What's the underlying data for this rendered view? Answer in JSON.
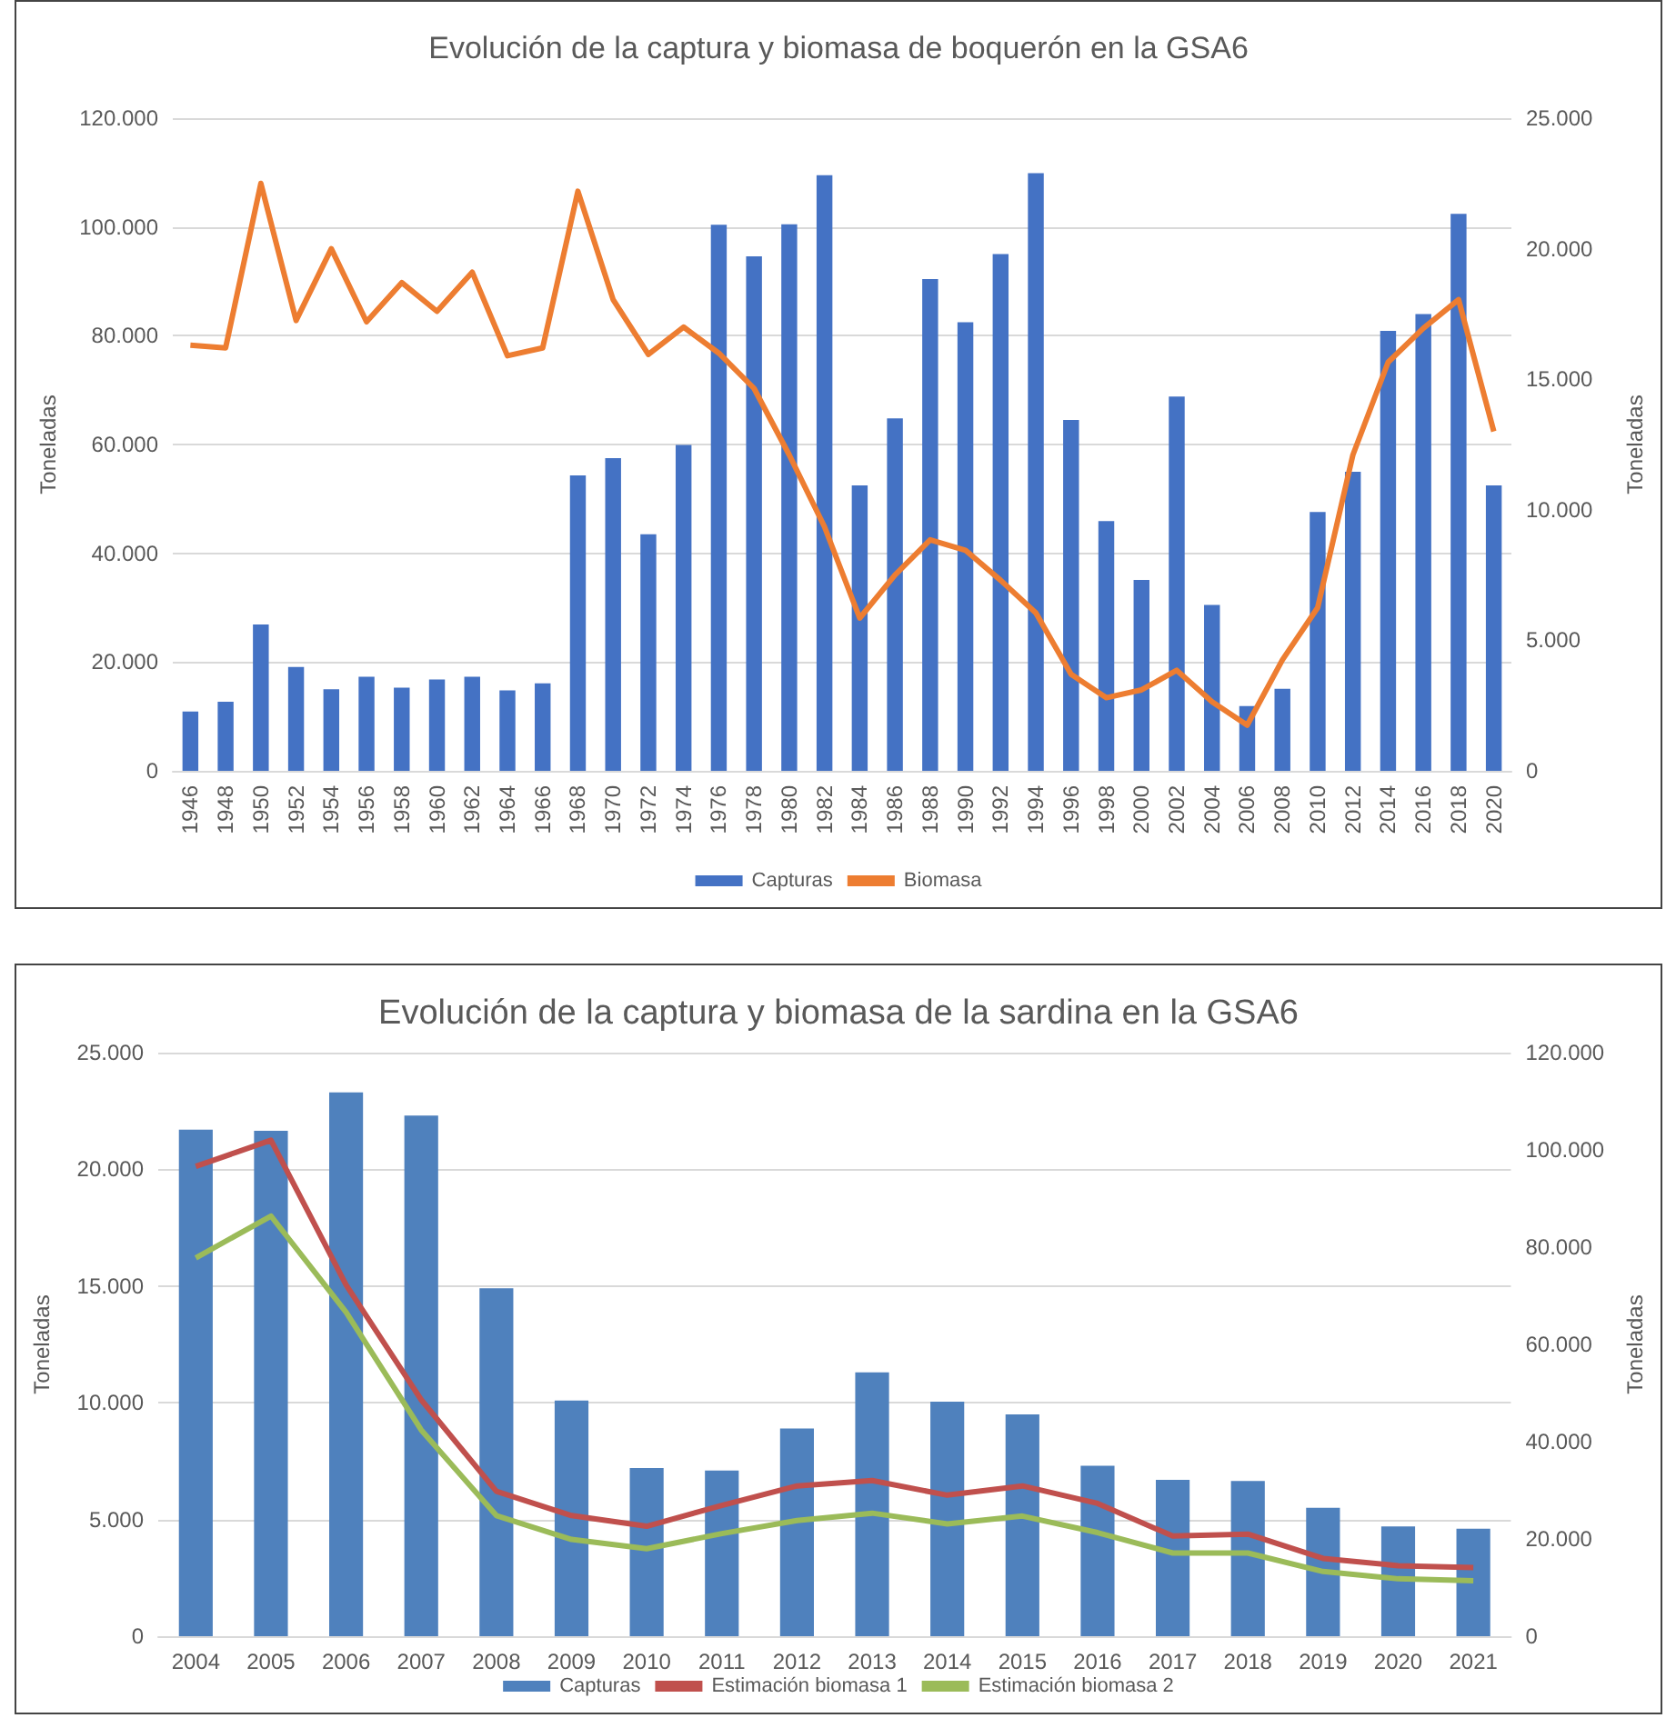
{
  "chart_data": [
    {
      "type": "bar",
      "title": "Evolución de la captura y biomasa de boquerón en la GSA6",
      "ylabel": "Toneladas",
      "y2label": "Toneladas",
      "categories": [
        "1946",
        "1948",
        "1950",
        "1952",
        "1954",
        "1956",
        "1958",
        "1960",
        "1962",
        "1964",
        "1966",
        "1968",
        "1970",
        "1972",
        "1974",
        "1976",
        "1978",
        "1980",
        "1982",
        "1984",
        "1986",
        "1988",
        "1990",
        "1992",
        "1994",
        "1996",
        "1998",
        "2000",
        "2002",
        "2004",
        "2006",
        "2008",
        "2010",
        "2012",
        "2014",
        "2016",
        "2018",
        "2020"
      ],
      "series": [
        {
          "name": "Capturas",
          "color": "#4472c4",
          "values": [
            10900,
            12700,
            26900,
            19100,
            15000,
            17300,
            15300,
            16800,
            17300,
            14800,
            16100,
            54300,
            57500,
            43500,
            59900,
            100400,
            94600,
            100500,
            109500,
            52500,
            64800,
            90400,
            82500,
            95000,
            109900,
            64500,
            45900,
            35100,
            68800,
            30500,
            11900,
            15100,
            47600,
            55000,
            80900,
            84000,
            102400,
            52500
          ]
        },
        {
          "name": "Biomasa",
          "type": "line",
          "axis": "y2",
          "color": "#ed7d31",
          "values": [
            16300,
            16200,
            22500,
            17250,
            20000,
            17200,
            18700,
            17600,
            19100,
            15900,
            16200,
            22200,
            18050,
            15950,
            17000,
            16000,
            14650,
            12100,
            9350,
            5850,
            7500,
            8850,
            8450,
            7300,
            6050,
            3700,
            2800,
            3100,
            3850,
            2650,
            1750,
            4250,
            6250,
            12100,
            15650,
            16950,
            18050,
            13000
          ]
        }
      ],
      "ylim": [
        0,
        120000
      ],
      "yticks": [
        {
          "value": 0,
          "label": "0"
        },
        {
          "value": 20000,
          "label": "20.000"
        },
        {
          "value": 40000,
          "label": "40.000"
        },
        {
          "value": 60000,
          "label": "60.000"
        },
        {
          "value": 80000,
          "label": "80.000"
        },
        {
          "value": 100000,
          "label": "100.000"
        },
        {
          "value": 120000,
          "label": "120.000"
        }
      ],
      "y2lim": [
        0,
        25000
      ],
      "y2ticks": [
        {
          "value": 0,
          "label": "0"
        },
        {
          "value": 5000,
          "label": "5.000"
        },
        {
          "value": 10000,
          "label": "10.000"
        },
        {
          "value": 15000,
          "label": "15.000"
        },
        {
          "value": 20000,
          "label": "20.000"
        },
        {
          "value": 25000,
          "label": "25.000"
        }
      ],
      "grid": "y",
      "legend": "bottom",
      "marker": "none",
      "line_style": "solid"
    },
    {
      "type": "bar",
      "title": "Evolución de la captura y biomasa de la sardina en la GSA6",
      "ylabel": "Toneladas",
      "y2label": "Toneladas",
      "categories": [
        "2004",
        "2005",
        "2006",
        "2007",
        "2008",
        "2009",
        "2010",
        "2011",
        "2012",
        "2013",
        "2014",
        "2015",
        "2016",
        "2017",
        "2018",
        "2019",
        "2020",
        "2021"
      ],
      "series": [
        {
          "name": "Capturas",
          "color": "#4f81bd",
          "values": [
            21700,
            21650,
            23300,
            22300,
            14900,
            10100,
            7200,
            7100,
            8900,
            11300,
            10050,
            9500,
            7300,
            6700,
            6650,
            5500,
            4700,
            4600
          ]
        },
        {
          "name": "Estimación biomasa 1",
          "type": "line",
          "axis": "y2",
          "color": "#c0504d",
          "values": [
            96600,
            102000,
            72200,
            48600,
            29800,
            24800,
            22600,
            26900,
            30900,
            32000,
            29000,
            30900,
            27300,
            20600,
            21000,
            16000,
            14500,
            14100
          ]
        },
        {
          "name": "Estimación biomasa 2",
          "type": "line",
          "axis": "y2",
          "color": "#9bbb59",
          "values": [
            77800,
            86400,
            66600,
            42400,
            24800,
            19900,
            18000,
            21100,
            23800,
            25300,
            23100,
            24700,
            21300,
            17100,
            17100,
            13300,
            11800,
            11400
          ]
        }
      ],
      "ylim": [
        0,
        25000
      ],
      "yticks": [
        {
          "value": 0,
          "label": "0"
        },
        {
          "value": 5000,
          "label": "5.000"
        },
        {
          "value": 10000,
          "label": "10.000"
        },
        {
          "value": 15000,
          "label": "15.000"
        },
        {
          "value": 20000,
          "label": "20.000"
        },
        {
          "value": 25000,
          "label": "25.000"
        }
      ],
      "y2lim": [
        0,
        120000
      ],
      "y2ticks": [
        {
          "value": 0,
          "label": "0"
        },
        {
          "value": 20000,
          "label": "20.000"
        },
        {
          "value": 40000,
          "label": "40.000"
        },
        {
          "value": 60000,
          "label": "60.000"
        },
        {
          "value": 80000,
          "label": "80.000"
        },
        {
          "value": 100000,
          "label": "100.000"
        },
        {
          "value": 120000,
          "label": "120.000"
        }
      ],
      "grid": "y",
      "legend": "bottom",
      "marker": "none",
      "line_style": "solid"
    }
  ]
}
